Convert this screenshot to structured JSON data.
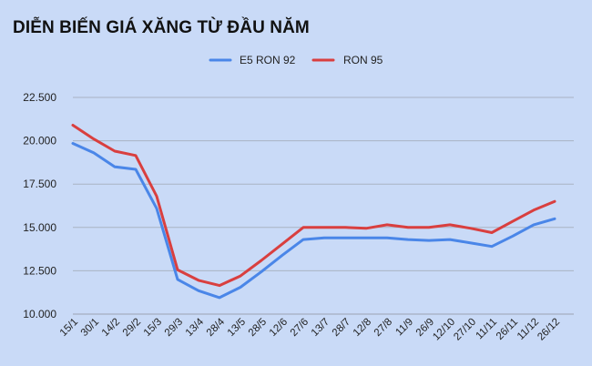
{
  "title": "DIỄN BIẾN GIÁ XĂNG TỪ ĐẦU NĂM",
  "chart_data": {
    "type": "line",
    "title": "DIỄN BIẾN GIÁ XĂNG TỪ ĐẦU NĂM",
    "xlabel": "",
    "ylabel": "",
    "categories": [
      "15/1",
      "30/1",
      "14/2",
      "29/2",
      "15/3",
      "29/3",
      "13/4",
      "28/4",
      "13/5",
      "28/5",
      "12/6",
      "27/6",
      "13/7",
      "28/7",
      "12/8",
      "27/8",
      "11/9",
      "26/9",
      "12/10",
      "27/10",
      "11/11",
      "26/11",
      "11/12",
      "26/12"
    ],
    "series": [
      {
        "name": "E5 RON 92",
        "color": "#4a86e8",
        "values": [
          19850,
          19300,
          18500,
          18350,
          16100,
          12000,
          11350,
          10950,
          11550,
          12450,
          13400,
          14300,
          14400,
          14400,
          14400,
          14400,
          14300,
          14250,
          14300,
          14100,
          13900,
          14500,
          15150,
          15500
        ]
      },
      {
        "name": "RON 95",
        "color": "#d93f3f",
        "values": [
          20900,
          20100,
          19400,
          19150,
          16800,
          12550,
          11950,
          11650,
          12200,
          13100,
          14050,
          15000,
          15000,
          15000,
          14950,
          15150,
          15000,
          15000,
          15150,
          14950,
          14700,
          15350,
          16000,
          16500
        ]
      }
    ],
    "yticks": [
      "10.000",
      "12.500",
      "15.000",
      "17.500",
      "20.000",
      "22.500"
    ],
    "ylim": [
      10000,
      22500
    ],
    "grid": true,
    "legend": "top-center"
  }
}
